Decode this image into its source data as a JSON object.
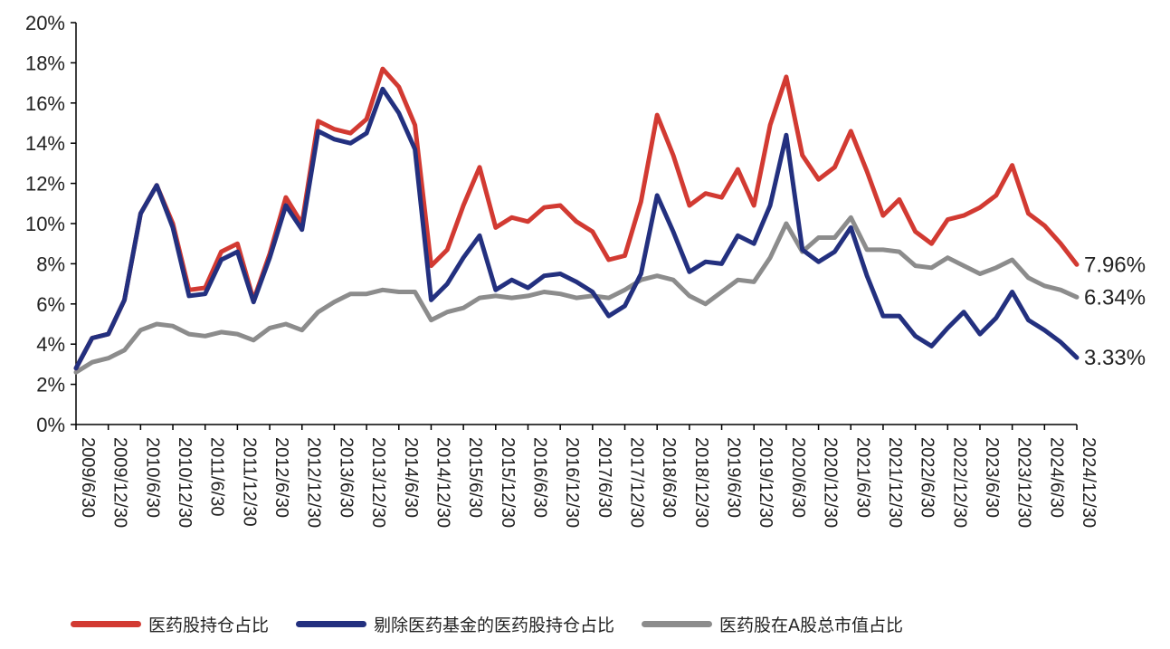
{
  "chart_data": {
    "type": "line",
    "ylim": [
      0,
      20
    ],
    "yticks": [
      "0%",
      "2%",
      "4%",
      "6%",
      "8%",
      "10%",
      "12%",
      "14%",
      "16%",
      "18%",
      "20%"
    ],
    "xtick_labels": [
      "2009/6/30",
      "2009/12/30",
      "2010/6/30",
      "2010/12/30",
      "2011/6/30",
      "2011/12/30",
      "2012/6/30",
      "2012/12/30",
      "2013/6/30",
      "2013/12/30",
      "2014/6/30",
      "2014/12/30",
      "2015/6/30",
      "2015/12/30",
      "2016/6/30",
      "2016/12/30",
      "2017/6/30",
      "2017/12/30",
      "2018/6/30",
      "2018/12/30",
      "2019/6/30",
      "2019/12/30",
      "2020/6/30",
      "2020/12/30",
      "2021/6/30",
      "2021/12/30",
      "2022/6/30",
      "2022/12/30",
      "2023/6/30",
      "2023/12/30",
      "2024/6/30",
      "2024/12/30"
    ],
    "grid": false,
    "legend_position": "bottom",
    "series": [
      {
        "name": "医药股持仓占比",
        "color": "#d23a32",
        "end_label": "7.96%",
        "values": [
          2.8,
          4.3,
          4.5,
          6.2,
          10.5,
          11.9,
          10.0,
          6.7,
          6.8,
          8.6,
          9.0,
          6.2,
          8.5,
          11.3,
          10.0,
          15.1,
          14.7,
          14.5,
          15.2,
          17.7,
          16.8,
          14.9,
          7.9,
          8.7,
          10.9,
          12.8,
          9.8,
          10.3,
          10.1,
          10.8,
          10.9,
          10.1,
          9.6,
          8.2,
          8.4,
          11.1,
          15.4,
          13.4,
          10.9,
          11.5,
          11.3,
          12.7,
          10.9,
          14.9,
          17.3,
          13.4,
          12.2,
          12.8,
          14.6,
          12.6,
          10.4,
          11.2,
          9.6,
          9.0,
          10.2,
          10.4,
          10.8,
          11.4,
          12.9,
          10.5,
          9.9,
          9.0,
          7.96
        ]
      },
      {
        "name": "剔除医药基金的医药股持仓占比",
        "color": "#23307f",
        "end_label": "3.33%",
        "values": [
          2.8,
          4.3,
          4.5,
          6.2,
          10.5,
          11.9,
          9.8,
          6.4,
          6.5,
          8.2,
          8.6,
          6.1,
          8.3,
          10.9,
          9.7,
          14.6,
          14.2,
          14.0,
          14.5,
          16.7,
          15.5,
          13.7,
          6.2,
          7.0,
          8.3,
          9.4,
          6.7,
          7.2,
          6.8,
          7.4,
          7.5,
          7.1,
          6.6,
          5.4,
          5.9,
          7.5,
          11.4,
          9.6,
          7.6,
          8.1,
          8.0,
          9.4,
          9.0,
          10.9,
          14.4,
          8.7,
          8.1,
          8.6,
          9.8,
          7.4,
          5.4,
          5.4,
          4.4,
          3.9,
          4.8,
          5.6,
          4.5,
          5.3,
          6.6,
          5.2,
          4.7,
          4.1,
          3.33
        ]
      },
      {
        "name": "医药股在A股总市值占比",
        "color": "#8c8c8c",
        "end_label": "6.34%",
        "values": [
          2.6,
          3.1,
          3.3,
          3.7,
          4.7,
          5.0,
          4.9,
          4.5,
          4.4,
          4.6,
          4.5,
          4.2,
          4.8,
          5.0,
          4.7,
          5.6,
          6.1,
          6.5,
          6.5,
          6.7,
          6.6,
          6.6,
          5.2,
          5.6,
          5.8,
          6.3,
          6.4,
          6.3,
          6.4,
          6.6,
          6.5,
          6.3,
          6.4,
          6.3,
          6.7,
          7.2,
          7.4,
          7.2,
          6.4,
          6.0,
          6.6,
          7.2,
          7.1,
          8.3,
          10.0,
          8.6,
          9.3,
          9.3,
          10.3,
          8.7,
          8.7,
          8.6,
          7.9,
          7.8,
          8.3,
          7.9,
          7.5,
          7.8,
          8.2,
          7.3,
          6.9,
          6.7,
          6.34
        ]
      }
    ]
  }
}
